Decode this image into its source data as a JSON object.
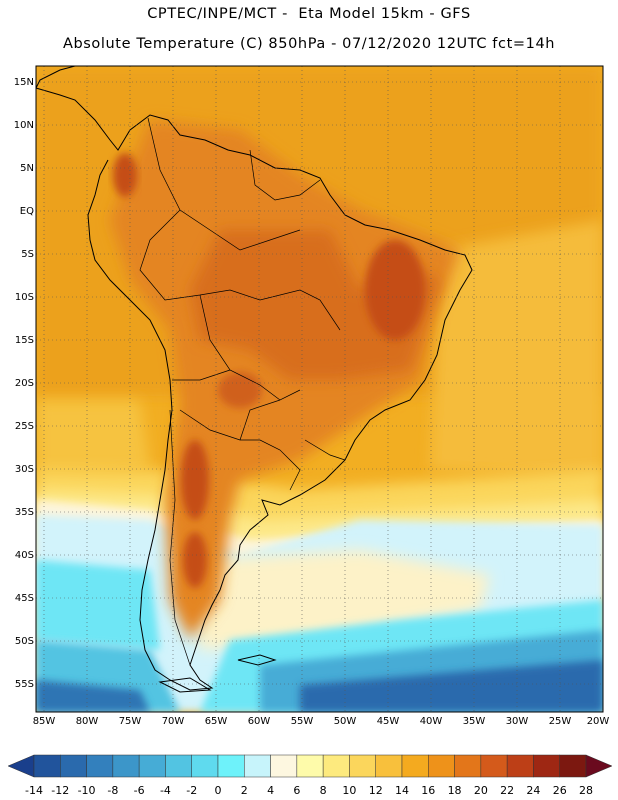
{
  "header": {
    "title_line1": "CPTEC/INPE/MCT -  Eta Model 15km - GFS",
    "title_line2": "Absolute Temperature (C) 850hPa - 07/12/2020 12UTC fct=14h"
  },
  "map": {
    "lat_labels": [
      "15N",
      "10N",
      "5N",
      "EQ",
      "5S",
      "10S",
      "15S",
      "20S",
      "25S",
      "30S",
      "35S",
      "40S",
      "45S",
      "50S",
      "55S"
    ],
    "lon_labels": [
      "85W",
      "80W",
      "75W",
      "70W",
      "65W",
      "60W",
      "55W",
      "50W",
      "45W",
      "40W",
      "35W",
      "30W",
      "25W",
      "20W"
    ]
  },
  "colorbar": {
    "labels": [
      "-14",
      "-12",
      "-10",
      "-8",
      "-6",
      "-4",
      "-2",
      "0",
      "2",
      "4",
      "6",
      "8",
      "10",
      "12",
      "14",
      "16",
      "18",
      "20",
      "22",
      "24",
      "26",
      "28"
    ],
    "colors": [
      "#1a3f8c",
      "#21549c",
      "#2a6aad",
      "#3380bd",
      "#3c96c9",
      "#46acd6",
      "#52c4e2",
      "#5fdaee",
      "#6ef2fa",
      "#c7f4fb",
      "#fdf7e0",
      "#fefbaa",
      "#fdea7e",
      "#fbd65c",
      "#f8c03c",
      "#f4aa1f",
      "#ee921a",
      "#e3761a",
      "#d45a1b",
      "#bd3f17",
      "#9e2713",
      "#7c1810",
      "#6a0a1e"
    ]
  }
}
